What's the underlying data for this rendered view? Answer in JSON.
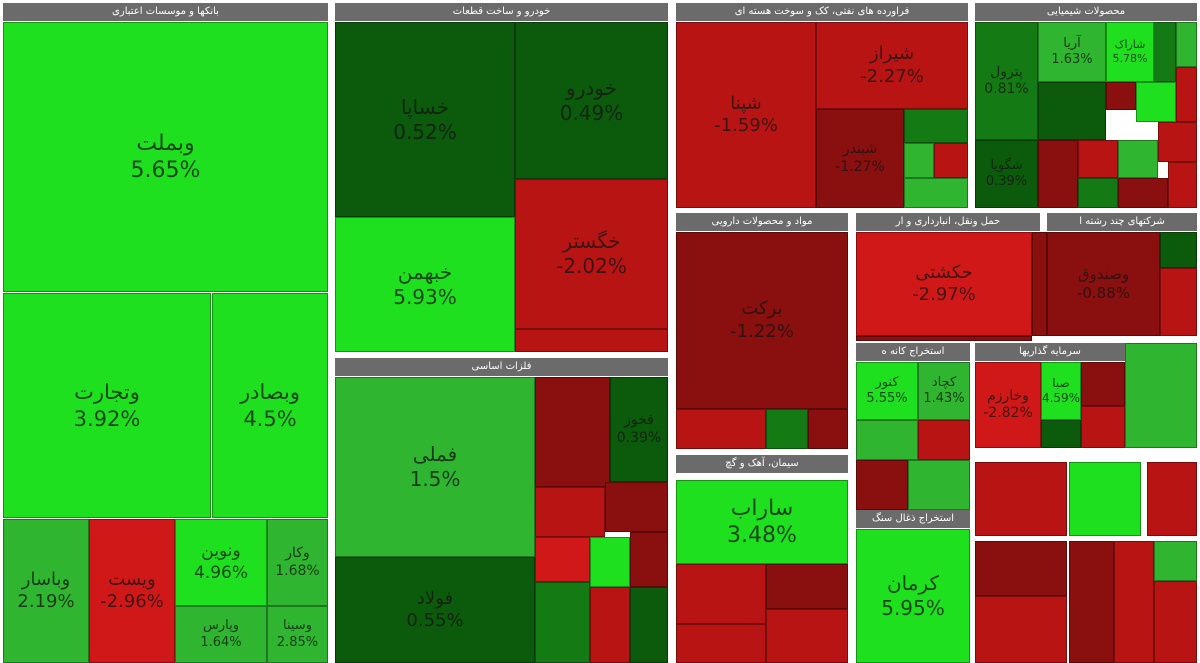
{
  "chart_data": {
    "type": "treemap",
    "colors": {
      "strong_positive": "#1fe01f",
      "positive": "#2fb52f",
      "weak_positive": "#147a14",
      "neutral": "#0c5a0c",
      "weak_negative": "#8a0f0f",
      "negative": "#b81414",
      "strong_negative": "#d01818",
      "header": "#6b6b6b"
    },
    "sectors": [
      {
        "name": "بانکها و موسسات اعتباری",
        "tiles": [
          {
            "symbol": "وبملت",
            "change": "5.65%",
            "value": 5.65
          },
          {
            "symbol": "وتجارت",
            "change": "3.92%",
            "value": 3.92
          },
          {
            "symbol": "وبصادر",
            "change": "4.5%",
            "value": 4.5
          },
          {
            "symbol": "وباسار",
            "change": "2.19%",
            "value": 2.19
          },
          {
            "symbol": "ویست",
            "change": "-2.96%",
            "value": -2.96
          },
          {
            "symbol": "ونوین",
            "change": "4.96%",
            "value": 4.96
          },
          {
            "symbol": "وکار",
            "change": "1.68%",
            "value": 1.68
          },
          {
            "symbol": "وپارس",
            "change": "1.64%",
            "value": 1.64
          },
          {
            "symbol": "وسینا",
            "change": "2.85%",
            "value": 2.85
          }
        ]
      },
      {
        "name": "خودرو و ساخت قطعات",
        "tiles": [
          {
            "symbol": "خساپا",
            "change": "0.52%",
            "value": 0.52
          },
          {
            "symbol": "خودرو",
            "change": "0.49%",
            "value": 0.49
          },
          {
            "symbol": "خبهمن",
            "change": "5.93%",
            "value": 5.93
          },
          {
            "symbol": "خگستر",
            "change": "-2.02%",
            "value": -2.02
          }
        ]
      },
      {
        "name": "فراورده های نفتی، کک و سوخت هسته ای",
        "tiles": [
          {
            "symbol": "شپنا",
            "change": "-1.59%",
            "value": -1.59
          },
          {
            "symbol": "شیراز",
            "change": "-2.27%",
            "value": -2.27
          },
          {
            "symbol": "شبندر",
            "change": "-1.27%",
            "value": -1.27
          }
        ]
      },
      {
        "name": "محصولات شیمیایی",
        "tiles": [
          {
            "symbol": "پترول",
            "change": "0.81%",
            "value": 0.81
          },
          {
            "symbol": "آریا",
            "change": "1.63%",
            "value": 1.63
          },
          {
            "symbol": "شاراک",
            "change": "5.78%",
            "value": 5.78
          },
          {
            "symbol": "شگویا",
            "change": "0.39%",
            "value": 0.39
          }
        ]
      },
      {
        "name": "مواد و محصولات دارویی",
        "tiles": [
          {
            "symbol": "برکت",
            "change": "-1.22%",
            "value": -1.22
          }
        ]
      },
      {
        "name": "حمل ونقل، انبارداری و ار",
        "tiles": [
          {
            "symbol": "حکشتی",
            "change": "-2.97%",
            "value": -2.97
          }
        ]
      },
      {
        "name": "شرکتهای چند رشته ا",
        "tiles": [
          {
            "symbol": "وصندوق",
            "change": "-0.88%",
            "value": -0.88
          }
        ]
      },
      {
        "name": "فلزات اساسی",
        "tiles": [
          {
            "symbol": "فملی",
            "change": "1.5%",
            "value": 1.5
          },
          {
            "symbol": "فولاد",
            "change": "0.55%",
            "value": 0.55
          },
          {
            "symbol": "فخوز",
            "change": "0.39%",
            "value": 0.39
          }
        ]
      },
      {
        "name": "سیمان، آهک و گچ",
        "tiles": [
          {
            "symbol": "ساراب",
            "change": "3.48%",
            "value": 3.48
          }
        ]
      },
      {
        "name": "استخراج کانه ه",
        "tiles": [
          {
            "symbol": "کنور",
            "change": "5.55%",
            "value": 5.55
          },
          {
            "symbol": "کچاد",
            "change": "1.43%",
            "value": 1.43
          }
        ]
      },
      {
        "name": "سرمایه گذاریها",
        "tiles": [
          {
            "symbol": "وخارزم",
            "change": "-2.82%",
            "value": -2.82
          },
          {
            "symbol": "صبا",
            "change": "4.59%",
            "value": 4.59
          }
        ]
      },
      {
        "name": "استخراج ذغال سنگ",
        "tiles": [
          {
            "symbol": "کرمان",
            "change": "5.95%",
            "value": 5.95
          }
        ]
      }
    ]
  }
}
